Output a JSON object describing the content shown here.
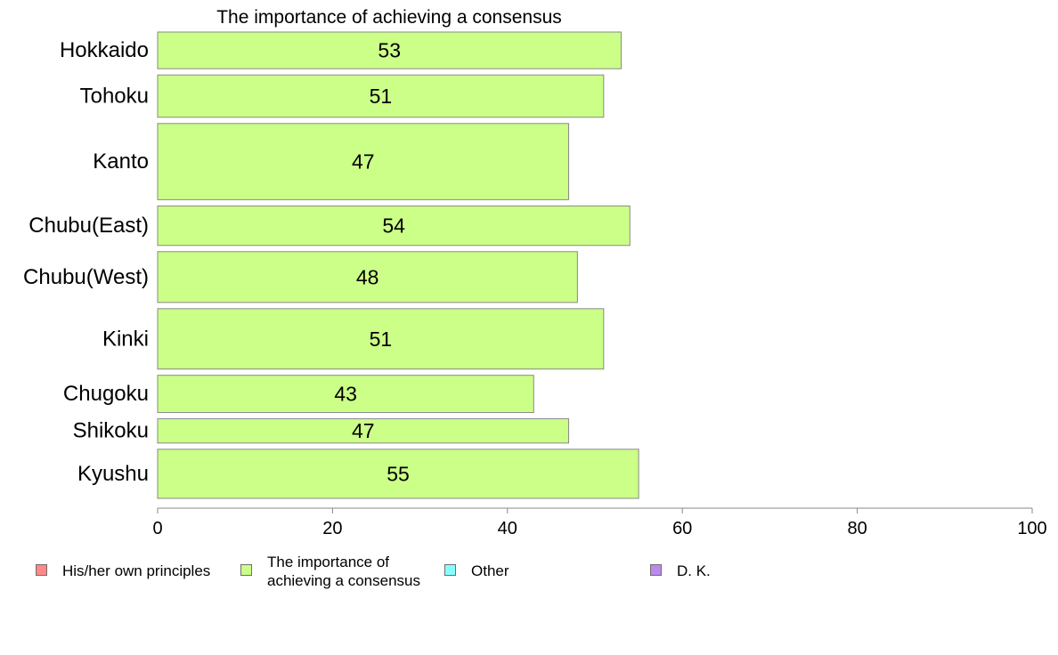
{
  "chart_data": {
    "type": "bar",
    "orientation": "horizontal",
    "title": "The importance of achieving a consensus",
    "xlabel": "",
    "ylabel": "",
    "xlim": [
      0,
      100
    ],
    "x_ticks": [
      0,
      20,
      40,
      60,
      80,
      100
    ],
    "categories": [
      "Hokkaido",
      "Tohoku",
      "Kanto",
      "Chubu(East)",
      "Chubu(West)",
      "Kinki",
      "Chugoku",
      "Shikoku",
      "Kyushu"
    ],
    "values": [
      53,
      51,
      47,
      54,
      48,
      51,
      43,
      47,
      55
    ],
    "category_weights": [
      0.65,
      0.75,
      1.35,
      0.7,
      0.9,
      1.07,
      0.66,
      0.43,
      0.87
    ],
    "bar_color": "#ccff88",
    "bar_border_color": "#888888",
    "grid": false,
    "legend_position": "bottom",
    "legend": [
      {
        "label": "His/her own principles",
        "color": "#ff8888"
      },
      {
        "label": "The importance of\nachieving a consensus",
        "color": "#ccff88"
      },
      {
        "label": "Other",
        "color": "#88ffff"
      },
      {
        "label": "D. K.",
        "color": "#bb88ee"
      }
    ]
  }
}
